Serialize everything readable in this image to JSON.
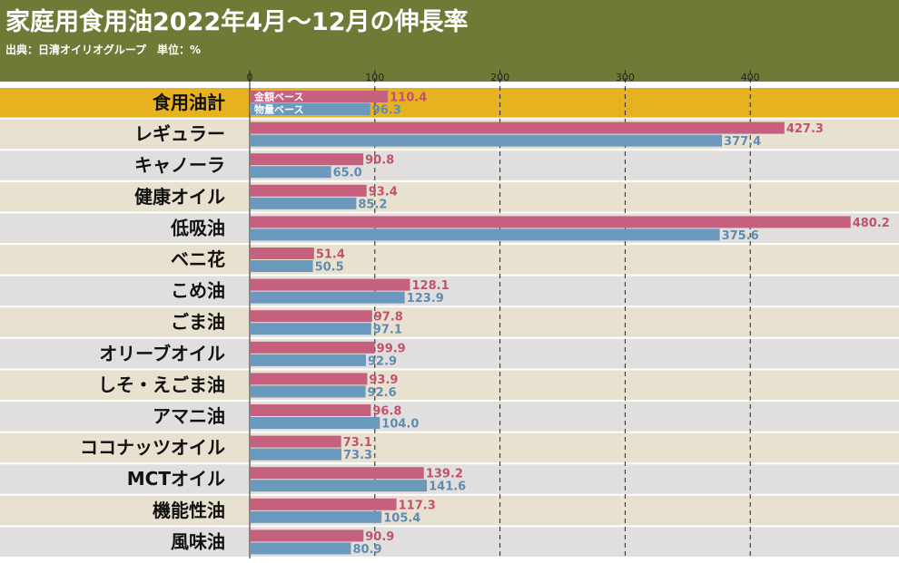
{
  "header": {
    "title": "家庭用食用油2022年4月～12月の伸長率",
    "source": "出典：日清オイリオグループ　単位：%"
  },
  "colors": {
    "header_bg": "#707a37",
    "highlight_row": "#e6b21f",
    "row_beige": "#e9e1cf",
    "row_gray": "#e1dfde",
    "series_value": "#c5607f",
    "series_volume": "#6b98bd",
    "label_value": "#c2516f",
    "label_volume": "#5e8bb1"
  },
  "chart_data": {
    "type": "bar",
    "orientation": "horizontal",
    "categories": [
      "食用油計",
      "レギュラー",
      "キャノーラ",
      "健康オイル",
      "低吸油",
      "ベニ花",
      "こめ油",
      "ごま油",
      "オリーブオイル",
      "しそ・えごま油",
      "アマニ油",
      "ココナッツオイル",
      "MCTオイル",
      "機能性油",
      "風味油"
    ],
    "series": [
      {
        "name": "金額ベース",
        "values": [
          110.4,
          427.3,
          90.8,
          93.4,
          480.2,
          51.4,
          128.1,
          97.8,
          99.9,
          93.9,
          96.8,
          73.1,
          139.2,
          117.3,
          90.9
        ]
      },
      {
        "name": "物量ベース",
        "values": [
          96.3,
          377.4,
          65.0,
          85.2,
          375.6,
          50.5,
          123.9,
          97.1,
          92.9,
          92.6,
          104.0,
          73.3,
          141.6,
          105.4,
          80.9
        ]
      }
    ],
    "value_labels": [
      [
        "110.4",
        "427.3",
        "90.8",
        "93.4",
        "480.2",
        "51.4",
        "128.1",
        "97.8",
        "99.9",
        "93.9",
        "96.8",
        "73.1",
        "139.2",
        "117.3",
        "90.9"
      ],
      [
        "96.3",
        "377.4",
        "65.0",
        "85.2",
        "375.6",
        "50.5",
        "123.9",
        "97.1",
        "92.9",
        "92.6",
        "104.0",
        "73.3",
        "141.6",
        "105.4",
        "80.9"
      ]
    ],
    "xticks": [
      0,
      100,
      200,
      300,
      400
    ],
    "xtick_labels": [
      "0",
      "100",
      "200",
      "300",
      "400"
    ],
    "xlim": [
      0,
      500
    ],
    "grid": true,
    "legend_placement": "inside first bar pair"
  }
}
